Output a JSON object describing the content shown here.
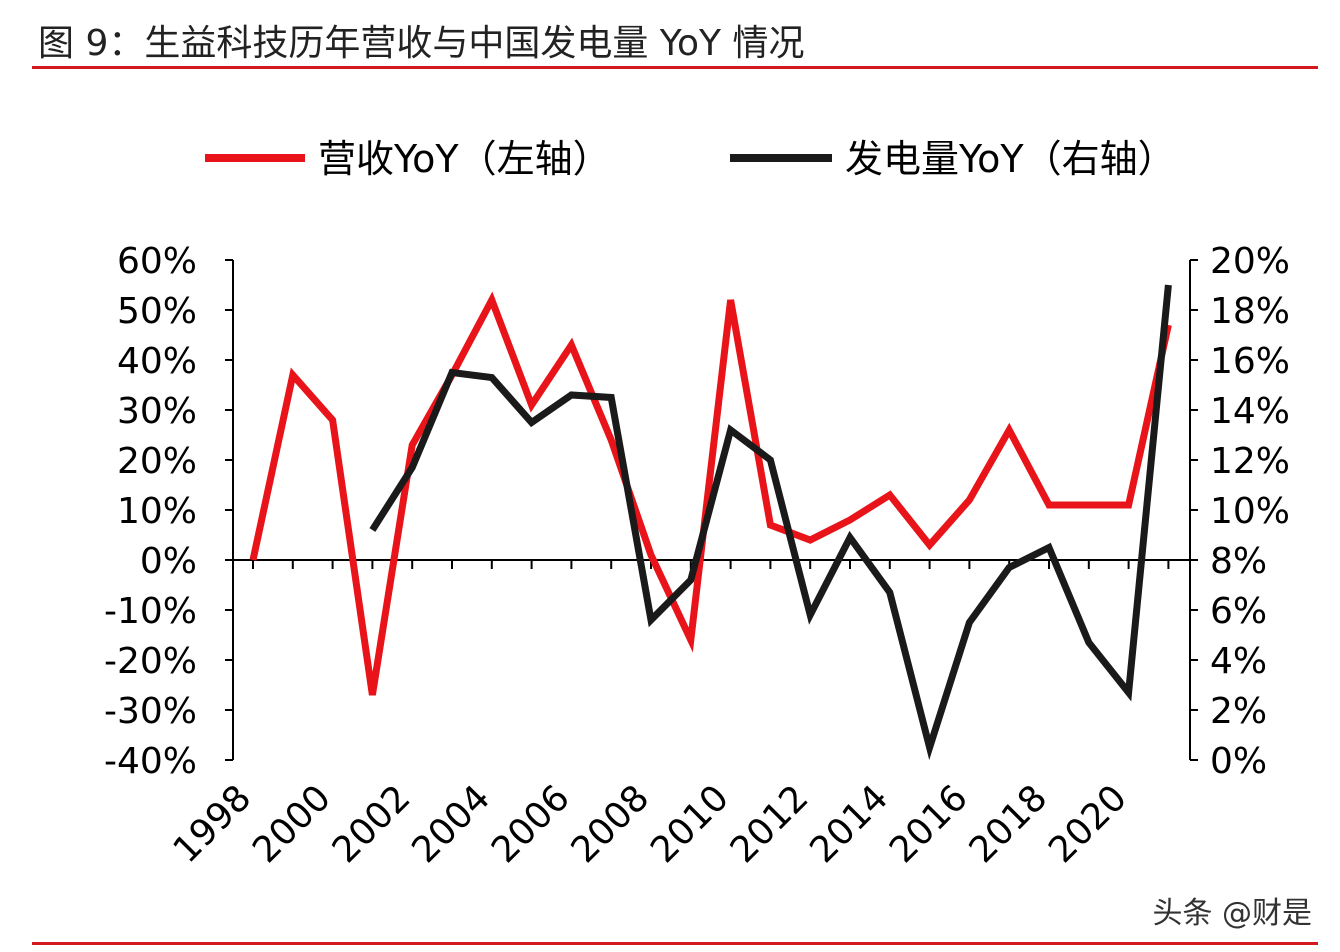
{
  "figure": {
    "title": "图 9：生益科技历年营收与中国发电量 YoY 情况",
    "watermark": "头条 @财是"
  },
  "chart_data": {
    "type": "line",
    "title": "图 9：生益科技历年营收与中国发电量 YoY 情况",
    "legend_position": "top",
    "grid": false,
    "x_tick_labels": [
      "1998",
      "2000",
      "2002",
      "2004",
      "2006",
      "2008",
      "2010",
      "2012",
      "2014",
      "2016",
      "2018",
      "2020"
    ],
    "y_left": {
      "range": [
        -0.4,
        0.6
      ],
      "tick_labels": [
        "60%",
        "50%",
        "40%",
        "30%",
        "20%",
        "10%",
        "0%",
        "-10%",
        "-20%",
        "-30%",
        "-40%"
      ],
      "tick_values": [
        0.6,
        0.5,
        0.4,
        0.3,
        0.2,
        0.1,
        0,
        -0.1,
        -0.2,
        -0.3,
        -0.4
      ]
    },
    "y_right": {
      "range": [
        0,
        0.2
      ],
      "tick_labels": [
        "20%",
        "18%",
        "16%",
        "14%",
        "12%",
        "10%",
        "8%",
        "6%",
        "4%",
        "2%",
        "0%"
      ],
      "tick_values": [
        0.2,
        0.18,
        0.16,
        0.14,
        0.12,
        0.1,
        0.08,
        0.06,
        0.04,
        0.02,
        0
      ]
    },
    "series": [
      {
        "name": "营收YoY（左轴）",
        "axis": "left",
        "color": "#e8141a",
        "x": [
          1998,
          1999,
          2000,
          2001,
          2002,
          2003,
          2004,
          2005,
          2006,
          2007,
          2008,
          2009,
          2010,
          2011,
          2012,
          2013,
          2014,
          2015,
          2016,
          2017,
          2018,
          2019,
          2020,
          2021
        ],
        "values": [
          0.0,
          0.37,
          0.28,
          -0.27,
          0.23,
          0.37,
          0.52,
          0.31,
          0.43,
          0.24,
          0.01,
          -0.16,
          0.52,
          0.07,
          0.04,
          0.08,
          0.13,
          0.03,
          0.12,
          0.26,
          0.11,
          0.11,
          0.11,
          0.47
        ]
      },
      {
        "name": "发电量YoY（右轴）",
        "axis": "right",
        "color": "#1a1a1a",
        "x": [
          2001,
          2002,
          2003,
          2004,
          2005,
          2006,
          2007,
          2008,
          2009,
          2010,
          2011,
          2012,
          2013,
          2014,
          2015,
          2016,
          2017,
          2018,
          2019,
          2020,
          2021
        ],
        "values": [
          0.092,
          0.117,
          0.155,
          0.153,
          0.135,
          0.146,
          0.145,
          0.056,
          0.072,
          0.132,
          0.12,
          0.058,
          0.089,
          0.067,
          0.005,
          0.055,
          0.077,
          0.085,
          0.047,
          0.027,
          0.19
        ]
      }
    ]
  }
}
